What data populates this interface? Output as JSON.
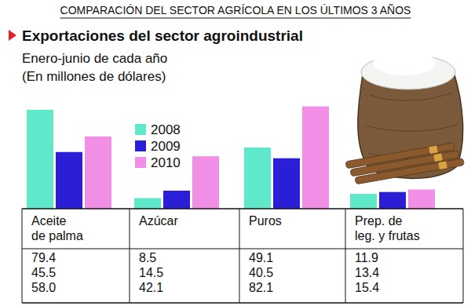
{
  "header": {
    "title": "COMPARACIÓN DEL SECTOR AGRÍCOLA EN LOS ÚLTIMOS 3 AÑOS"
  },
  "chart_data": {
    "type": "bar",
    "title": "Exportaciones del sector agroindustrial",
    "subtitle": [
      "Enero-junio de cada año",
      "(En millones de dólares)"
    ],
    "categories": [
      "Aceite\nde palma",
      "Azúcar",
      "Puros",
      "Prep. de\nleg. y frutas"
    ],
    "series": [
      {
        "name": "2008",
        "color": "#5fe8c9",
        "values": [
          79.4,
          8.5,
          49.1,
          11.9
        ],
        "value_labels": [
          "79.4",
          "8.5",
          "49.1",
          "11.9"
        ]
      },
      {
        "name": "2009",
        "color": "#2a1fd6",
        "values": [
          45.5,
          14.5,
          40.5,
          13.4
        ],
        "value_labels": [
          "45.5",
          "14.5",
          "40.5",
          "13.4"
        ]
      },
      {
        "name": "2010",
        "color": "#f18fe6",
        "values": [
          58.0,
          42.1,
          82.1,
          15.4
        ],
        "value_labels": [
          "58.0",
          "42.1",
          "82.1",
          "15.4"
        ]
      }
    ],
    "ylim": [
      0,
      85
    ],
    "tick_labels": false,
    "grid": false,
    "data_labels": true,
    "legend": "top-left"
  }
}
